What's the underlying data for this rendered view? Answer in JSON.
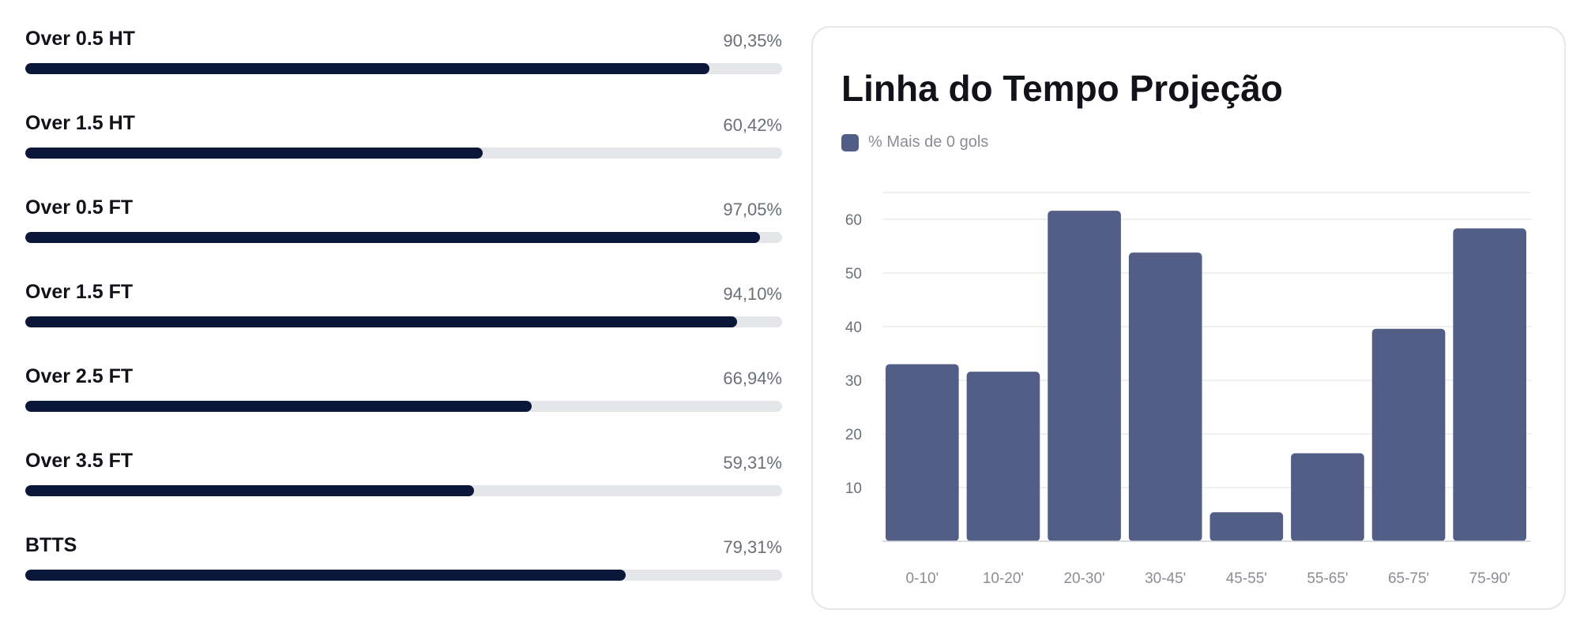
{
  "stats": [
    {
      "label": "Over 0.5 HT",
      "value_text": "90,35%",
      "value": 90.35
    },
    {
      "label": "Over 1.5 HT",
      "value_text": "60,42%",
      "value": 60.42
    },
    {
      "label": "Over 0.5 FT",
      "value_text": "97,05%",
      "value": 97.05
    },
    {
      "label": "Over 1.5 FT",
      "value_text": "94,10%",
      "value": 94.1
    },
    {
      "label": "Over 2.5 FT",
      "value_text": "66,94%",
      "value": 66.94
    },
    {
      "label": "Over 3.5 FT",
      "value_text": "59,31%",
      "value": 59.31
    },
    {
      "label": "BTTS",
      "value_text": "79,31%",
      "value": 79.31
    }
  ],
  "colors": {
    "bar_fill": "#0b1739",
    "bar_track": "#e5e6ea",
    "chart_bar": "#525e85"
  },
  "chart_data": {
    "type": "bar",
    "title": "Linha do Tempo Projeção",
    "categories": [
      "0-10'",
      "10-20'",
      "20-30'",
      "30-45'",
      "45-55'",
      "55-65'",
      "65-75'",
      "75-90'"
    ],
    "series": [
      {
        "name": "% Mais de 0 gols",
        "values": [
          33,
          31.6,
          61.6,
          53.8,
          5.4,
          16.4,
          39.6,
          58.3
        ]
      }
    ],
    "yticks": [
      10,
      20,
      30,
      40,
      50,
      60
    ],
    "ylim": [
      0,
      65
    ],
    "grid": true,
    "legend": "top-left"
  }
}
